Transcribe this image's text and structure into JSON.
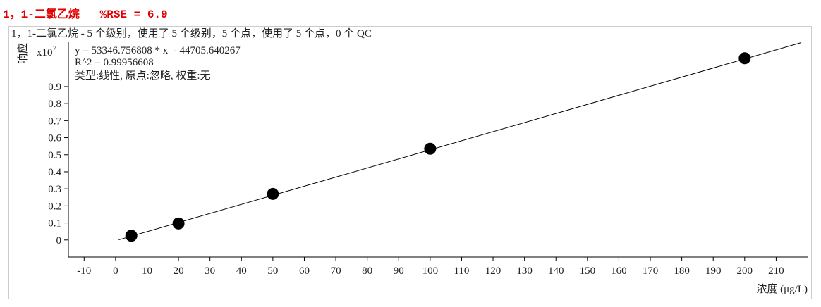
{
  "chart_data": {
    "type": "scatter",
    "title": "1，1-二氯乙烷   %RSE = 6.9",
    "subtitle": "1，1-二氯乙烷 - 5 个级别，使用了 5 个级别，5 个点，使用了 5 个点，0 个 QC",
    "annotations": [
      "y = 53346.756808 * x  - 44705.640267",
      "R^2 = 0.99956608",
      "类型:线性, 原点:忽略, 权重:无"
    ],
    "y_label": "响应",
    "y_multiplier": "x10",
    "y_multiplier_exponent": "7",
    "x_label": "浓度 (μg/L)",
    "x": [
      5,
      20,
      50,
      100,
      200
    ],
    "values": [
      0.025,
      0.097,
      0.27,
      0.535,
      1.066
    ],
    "color": "#000000",
    "fit_line": {
      "x": [
        1,
        218
      ],
      "values": [
        0.0009,
        1.158
      ],
      "color": "#000000"
    },
    "xlim": [
      -15,
      220
    ],
    "ylim": [
      -0.1,
      1.16
    ],
    "xticks": [
      -10,
      0,
      10,
      20,
      30,
      40,
      50,
      60,
      70,
      80,
      90,
      100,
      110,
      120,
      130,
      140,
      150,
      160,
      170,
      180,
      190,
      200,
      210
    ],
    "yticks": [
      0,
      0.1,
      0.2,
      0.3,
      0.4,
      0.5,
      0.6,
      0.7,
      0.8,
      0.9
    ]
  }
}
